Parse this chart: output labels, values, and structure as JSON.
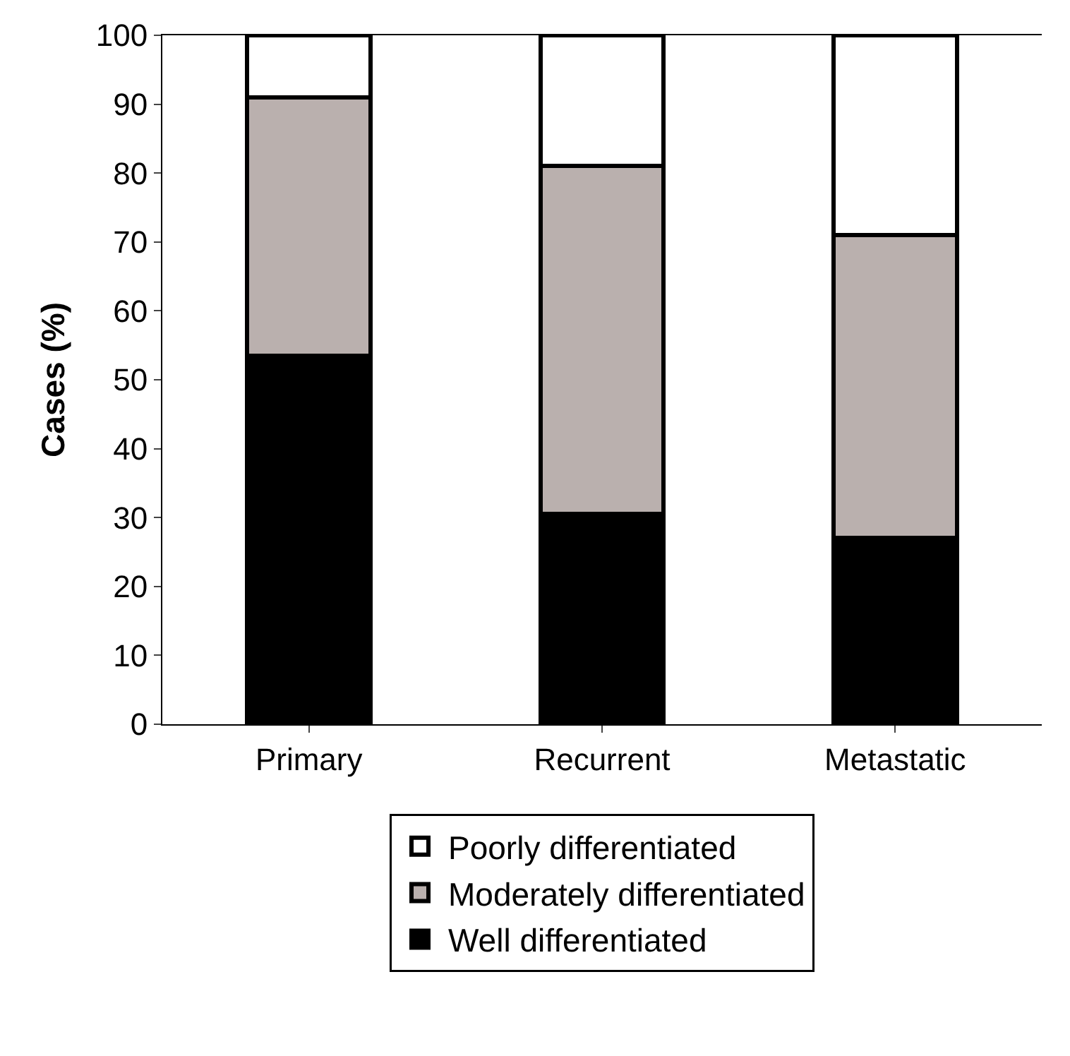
{
  "chart_data": {
    "type": "bar",
    "stacked": true,
    "ylabel": "Cases (%)",
    "categories": [
      "Primary",
      "Recurrent",
      "Metastatic"
    ],
    "series": [
      {
        "name": "Well differentiated",
        "color": "#000000",
        "values": [
          53.5,
          30.5,
          27
        ]
      },
      {
        "name": "Moderately differentiated",
        "color": "#bab0ae",
        "values": [
          37.5,
          50.5,
          44
        ]
      },
      {
        "name": "Poorly differentiated",
        "color": "#ffffff",
        "values": [
          9,
          19,
          29
        ]
      }
    ],
    "ylim": [
      0,
      100
    ],
    "yticks": [
      0,
      10,
      20,
      30,
      40,
      50,
      60,
      70,
      80,
      90,
      100
    ],
    "legend": "bottom"
  }
}
